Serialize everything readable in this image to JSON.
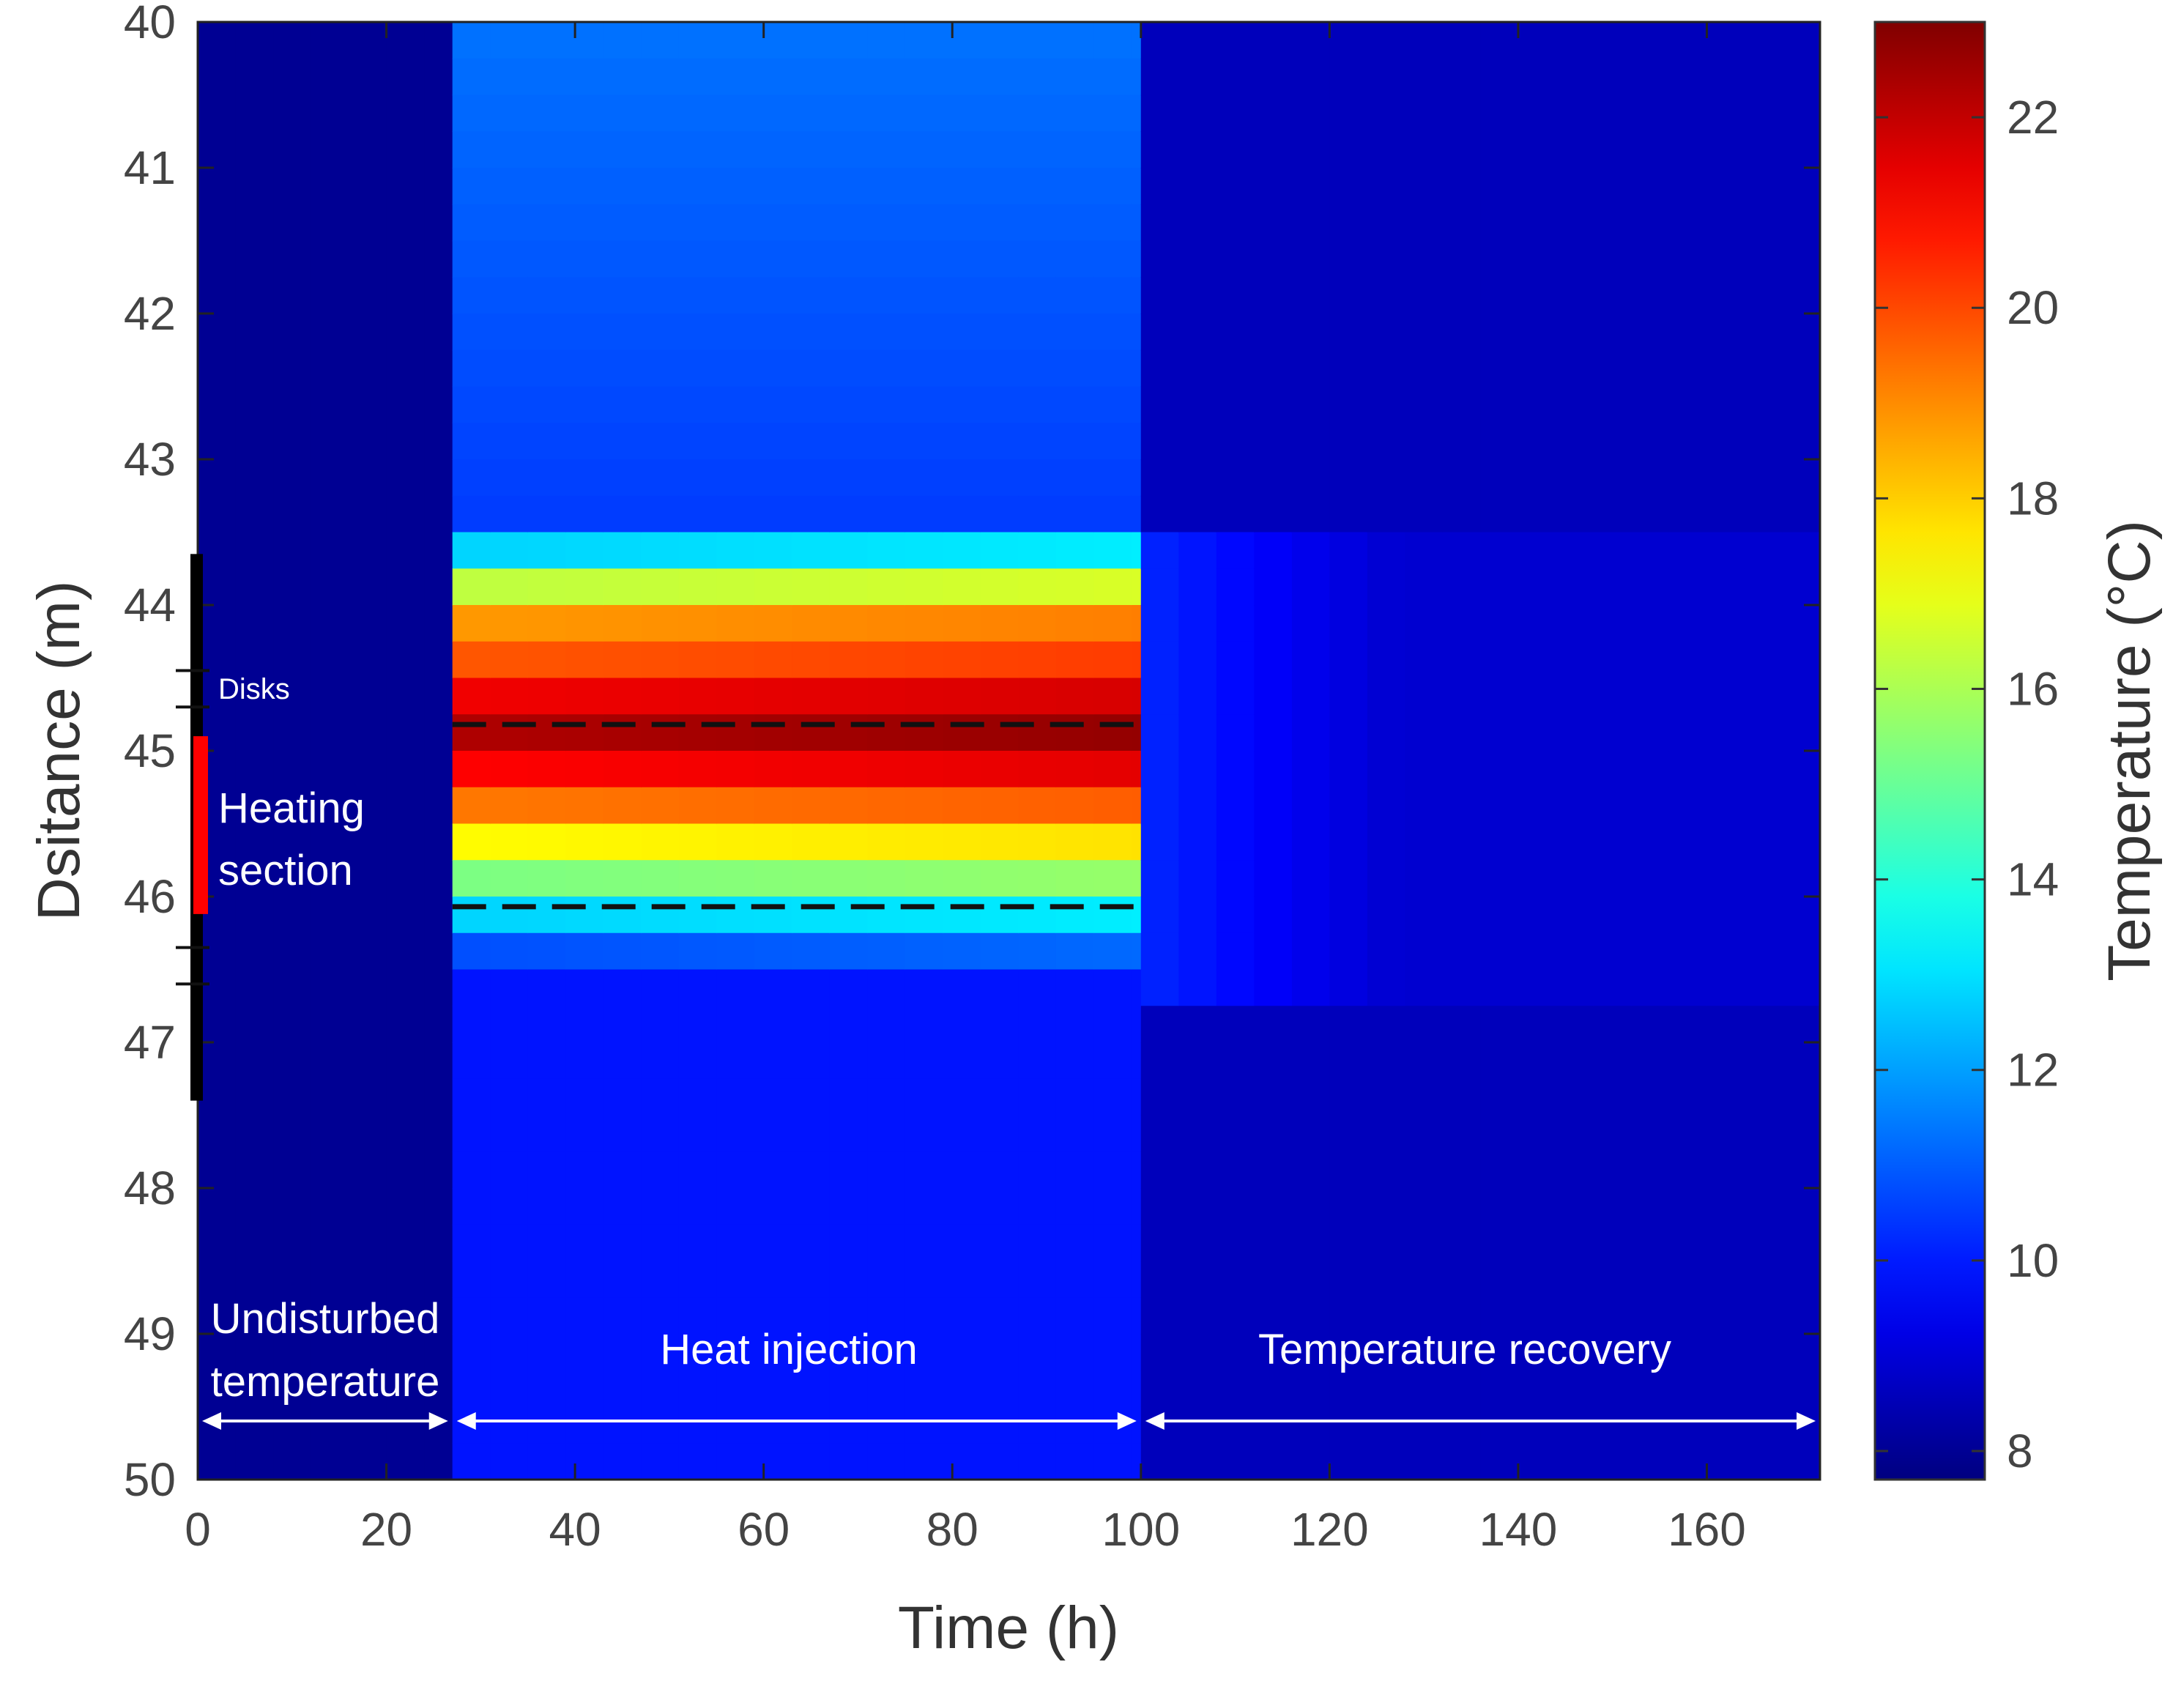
{
  "chart_data": {
    "type": "heatmap",
    "xlabel": "Time (h)",
    "ylabel": "Dsitance (m)",
    "xlim": [
      0,
      172
    ],
    "ylim": [
      40,
      50
    ],
    "y_reversed": true,
    "xticks": [
      0,
      20,
      40,
      60,
      80,
      100,
      120,
      140,
      160
    ],
    "yticks": [
      40,
      41,
      42,
      43,
      44,
      45,
      46,
      47,
      48,
      49,
      50
    ],
    "colorbar": {
      "label": "Temperature (°C)",
      "min": 7.7,
      "max": 23,
      "ticks": [
        8,
        10,
        12,
        14,
        16,
        18,
        20,
        22
      ],
      "colormap": "jet"
    },
    "phases": [
      {
        "name": "Undisturbed temperature",
        "line1": "Undisturbed",
        "line2": "temperature",
        "t_start": 0,
        "t_end": 27,
        "background_temp": 8.0
      },
      {
        "name": "Heat injection",
        "t_start": 27,
        "t_end": 100,
        "background_temp": 9.9
      },
      {
        "name": "Temperature recovery",
        "t_start": 100,
        "t_end": 172,
        "background_temp": 8.6
      }
    ],
    "heating_profile": {
      "distances": [
        43.5,
        43.75,
        44.0,
        44.25,
        44.5,
        44.75,
        45.0,
        45.25,
        45.5,
        45.75,
        46.0,
        46.25
      ],
      "temperatures": [
        13.0,
        16.5,
        19.0,
        20.0,
        21.5,
        22.5,
        21.3,
        19.5,
        17.5,
        15.5,
        13.0,
        11.0
      ]
    },
    "dashed_lines": [
      44.82,
      46.07
    ],
    "annotations": {
      "disks": "Disks",
      "heating_section_line1": "Heating",
      "heating_section_line2": "section"
    },
    "probe": {
      "black_segment": [
        43.65,
        47.4
      ],
      "red_segment": [
        44.9,
        46.12
      ],
      "disk_marks": [
        44.45,
        44.7,
        46.35,
        46.6
      ]
    }
  }
}
